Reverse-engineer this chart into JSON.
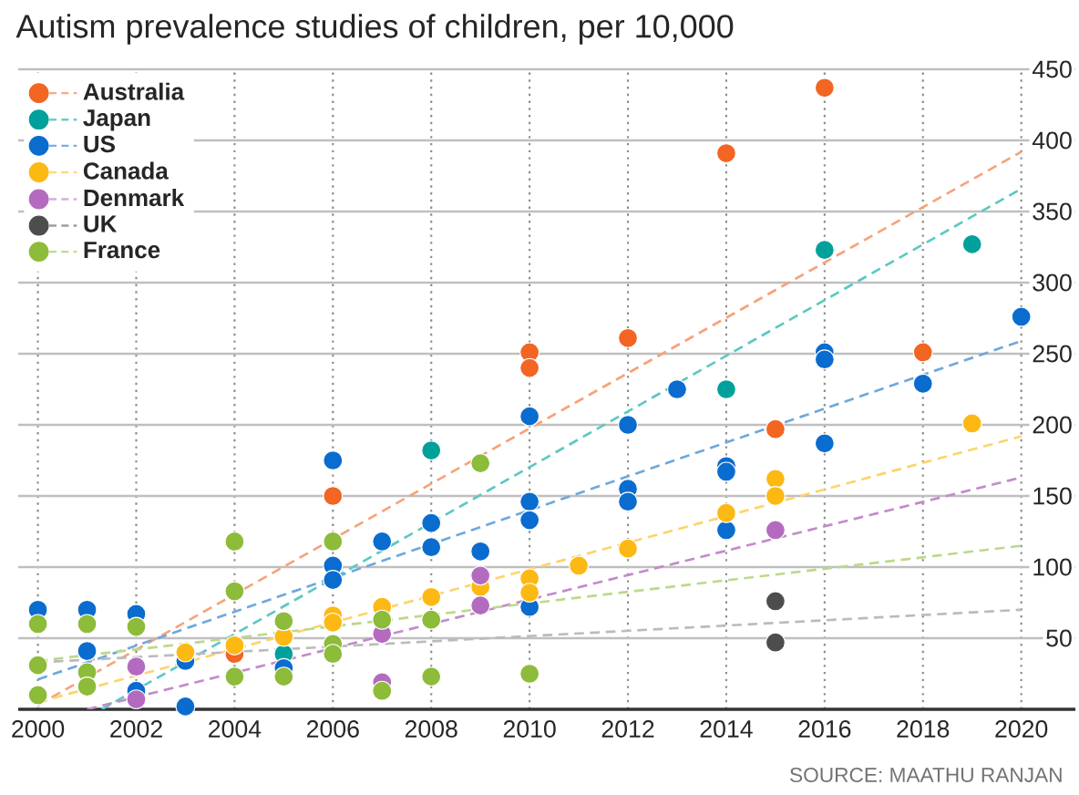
{
  "chart_data": {
    "type": "scatter",
    "title": "Autism prevalence studies of children, per 10,000",
    "annotations": [
      "SOURCE: MAATHU RANJAN"
    ],
    "xlim": [
      1999.6,
      2021.1
    ],
    "xticks": [
      2000,
      2002,
      2004,
      2006,
      2008,
      2010,
      2012,
      2014,
      2016,
      2018,
      2020
    ],
    "ylim": [
      0,
      450
    ],
    "yticks": [
      50,
      100,
      150,
      200,
      250,
      300,
      350,
      400,
      450
    ],
    "grid": true,
    "legend": "top left",
    "marker": "circle",
    "series": [
      {
        "name": "Australia",
        "color": "#f26522",
        "x": [
          2004,
          2006,
          2010,
          2010,
          2012,
          2014,
          2015,
          2016,
          2018
        ],
        "values": [
          39,
          150,
          251,
          240,
          261,
          391,
          197,
          437,
          251
        ]
      },
      {
        "name": "Japan",
        "color": "#00a19a",
        "x": [
          2005,
          2008,
          2014,
          2016,
          2019
        ],
        "values": [
          39,
          182,
          225,
          323,
          327
        ]
      },
      {
        "name": "US",
        "color": "#0a6ccf",
        "x": [
          2000,
          2001,
          2001,
          2002,
          2002,
          2003,
          2003,
          2005,
          2006,
          2006,
          2006,
          2007,
          2008,
          2008,
          2009,
          2010,
          2010,
          2010,
          2010,
          2012,
          2012,
          2012,
          2013,
          2014,
          2014,
          2014,
          2016,
          2016,
          2016,
          2018,
          2020
        ],
        "values": [
          70,
          70,
          41,
          67,
          13,
          34,
          2,
          29,
          175,
          101,
          91,
          118,
          131,
          114,
          111,
          206,
          146,
          133,
          72,
          200,
          155,
          146,
          225,
          171,
          167,
          126,
          187,
          251,
          246,
          229,
          276
        ]
      },
      {
        "name": "Canada",
        "color": "#fdb913",
        "x": [
          2003,
          2004,
          2005,
          2006,
          2006,
          2007,
          2008,
          2009,
          2010,
          2010,
          2011,
          2012,
          2014,
          2015,
          2015,
          2019
        ],
        "values": [
          40,
          45,
          51,
          66,
          61,
          72,
          79,
          86,
          92,
          82,
          101,
          113,
          138,
          162,
          150,
          201
        ]
      },
      {
        "name": "Denmark",
        "color": "#b36bbf",
        "x": [
          2002,
          2002,
          2007,
          2007,
          2009,
          2009,
          2015
        ],
        "values": [
          30,
          7,
          19,
          53,
          94,
          73,
          126
        ]
      },
      {
        "name": "UK",
        "color": "#4d4d4d",
        "x": [
          2015,
          2015
        ],
        "values": [
          76,
          47
        ]
      },
      {
        "name": "France",
        "color": "#8dbb3a",
        "x": [
          2000,
          2000,
          2000,
          2001,
          2001,
          2001,
          2002,
          2004,
          2004,
          2004,
          2005,
          2005,
          2006,
          2006,
          2006,
          2007,
          2007,
          2008,
          2008,
          2009,
          2010
        ],
        "values": [
          60,
          31,
          10,
          60,
          26,
          16,
          58,
          118,
          83,
          23,
          62,
          23,
          118,
          46,
          39,
          63,
          13,
          63,
          23,
          173,
          25
        ]
      },
      {
        "type": "line",
        "line_style": "dashed",
        "marker": "none",
        "color": "#f7a27a",
        "x": [
          2000,
          2020
        ],
        "values": [
          3,
          392
        ]
      },
      {
        "type": "line",
        "line_style": "dashed",
        "marker": "none",
        "color": "#5cc8c2",
        "x": [
          2001.3,
          2020
        ],
        "values": [
          0,
          366
        ]
      },
      {
        "type": "line",
        "line_style": "dashed",
        "marker": "none",
        "color": "#6fa8dc",
        "x": [
          2000,
          2020
        ],
        "values": [
          21,
          259
        ]
      },
      {
        "type": "line",
        "line_style": "dashed",
        "marker": "none",
        "color": "#fdd46a",
        "x": [
          2000,
          2020
        ],
        "values": [
          5,
          192
        ]
      },
      {
        "type": "line",
        "line_style": "dashed",
        "marker": "none",
        "color": "#c28bc9",
        "x": [
          2001,
          2020
        ],
        "values": [
          0,
          163
        ]
      },
      {
        "type": "line",
        "line_style": "dashed",
        "marker": "none",
        "color": "#bbbbbb",
        "x": [
          2000,
          2020
        ],
        "values": [
          33,
          70
        ]
      },
      {
        "type": "line",
        "line_style": "dashed",
        "marker": "none",
        "color": "#bcd98a",
        "x": [
          2000,
          2020
        ],
        "values": [
          34,
          115
        ]
      }
    ]
  }
}
